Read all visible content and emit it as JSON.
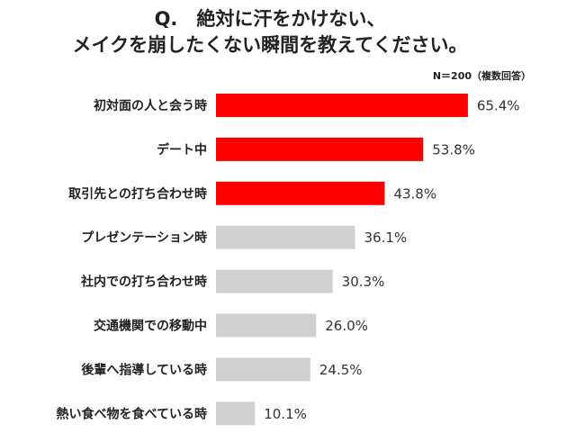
{
  "chart_data": {
    "type": "bar",
    "orientation": "horizontal",
    "title": [
      "Q.　絶対に汗をかけない、",
      "メイクを崩したくない瞬間を教えてください。"
    ],
    "note": "N＝200（複数回答）",
    "categories": [
      "初対面の人と会う時",
      "デート中",
      "取引先との打ち合わせ時",
      "プレゼンテーション時",
      "社内での打ち合わせ時",
      "交通機関での移動中",
      "後輩へ指導している時",
      "熱い食べ物を食べている時"
    ],
    "values": [
      65.4,
      53.8,
      43.8,
      36.1,
      30.3,
      26.0,
      24.5,
      10.1
    ],
    "value_labels": [
      "65.4%",
      "53.8%",
      "43.8%",
      "36.1%",
      "30.3%",
      "26.0%",
      "24.5%",
      "10.1%"
    ],
    "colors": [
      "#ff0000",
      "#ff0000",
      "#ff0000",
      "#d0d0d0",
      "#d0d0d0",
      "#d0d0d0",
      "#d0d0d0",
      "#d0d0d0"
    ]
  }
}
